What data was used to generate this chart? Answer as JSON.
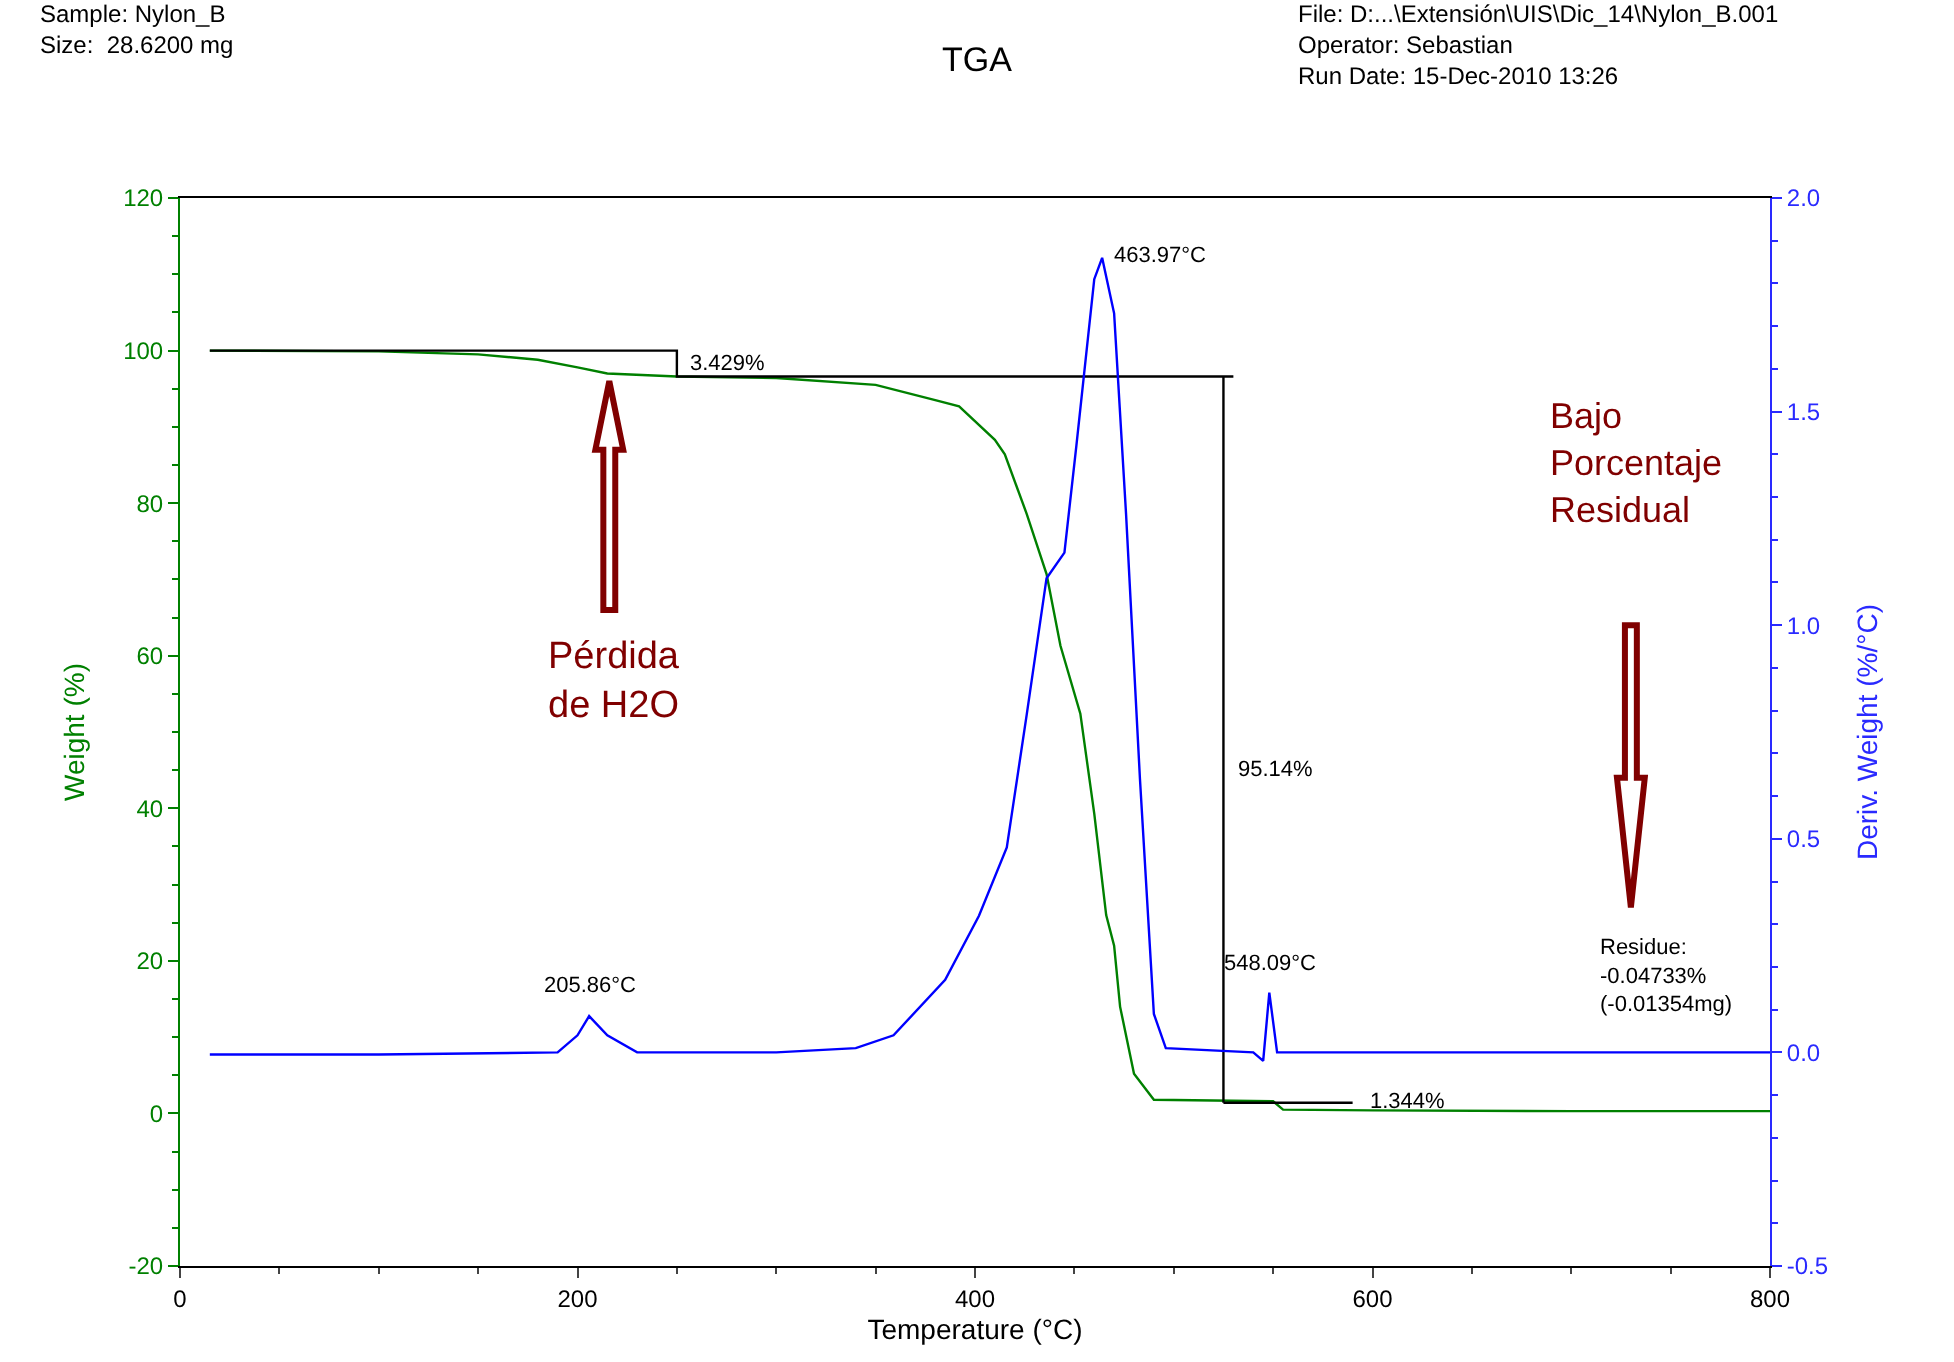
{
  "chart_data": {
    "type": "line",
    "title": "TGA",
    "xlabel": "Temperature (°C)",
    "ylabel": "Weight (%)",
    "y2label": "Deriv. Weight (%/°C)",
    "series": [
      {
        "color": "#008000",
        "x": [
          15,
          100,
          150,
          180,
          200,
          215,
          250,
          300,
          350,
          380,
          392,
          410,
          415,
          426,
          436,
          443,
          453,
          460,
          466,
          470,
          473,
          480,
          490,
          520,
          550,
          555,
          600,
          700,
          800
        ],
        "values": [
          100,
          99.9,
          99.5,
          98.8,
          97.8,
          97.0,
          96.6,
          96.4,
          95.5,
          93.5,
          92.7,
          88.3,
          86.4,
          78.6,
          70.7,
          61.3,
          52.4,
          39.3,
          26,
          22,
          14,
          5.2,
          1.8,
          1.7,
          1.6,
          0.5,
          0.4,
          0.3,
          0.3
        ]
      },
      {
        "color": "#0000ff",
        "axis": "y2",
        "x": [
          15,
          100,
          190,
          200,
          205.86,
          215,
          230,
          300,
          340,
          359,
          385,
          402,
          416,
          426,
          436,
          445,
          451,
          460,
          463.97,
          470,
          476,
          483,
          490,
          496,
          540,
          545,
          548.09,
          552,
          560,
          700,
          800
        ],
        "values": [
          -0.005,
          -0.005,
          0.0,
          0.04,
          0.085,
          0.04,
          0.0,
          0.0,
          0.01,
          0.04,
          0.17,
          0.32,
          0.48,
          0.79,
          1.11,
          1.17,
          1.42,
          1.81,
          1.86,
          1.73,
          1.26,
          0.64,
          0.09,
          0.01,
          0.0,
          -0.02,
          0.14,
          0.0,
          0.0,
          0.0,
          0.0
        ]
      },
      {
        "color": "#000000",
        "x": [
          15,
          250,
          250,
          530,
          null,
          525,
          525,
          null,
          525,
          590
        ],
        "values": [
          100,
          100,
          96.6,
          96.6,
          null,
          96.6,
          1.4,
          null,
          1.4,
          1.4
        ]
      }
    ],
    "xlim": [
      0,
      800
    ],
    "xticks": [
      0,
      200,
      400,
      600,
      800
    ],
    "ylim": [
      -20,
      120
    ],
    "yticks": [
      -20,
      0,
      20,
      40,
      60,
      80,
      100,
      120
    ],
    "y2lim": [
      -0.5,
      2.0
    ],
    "y2ticks": [
      -0.5,
      {
        "value": 0,
        "label": "0.0"
      },
      0.5,
      {
        "value": 1,
        "label": "1.0"
      },
      1.5,
      {
        "value": 2,
        "label": "2.0"
      }
    ],
    "marker": "none",
    "line_style": "solid",
    "annotations": [
      "Sample: Nylon_B\nSize:  28.6200 mg",
      "File: D:...\\Extensión\\UIS\\Dic_14\\Nylon_B.001\nOperator: Sebastian\nRun Date: 15-Dec-2010 13:26",
      {
        "text": "3.429%",
        "x": 255,
        "y": 98.3
      },
      {
        "text": "95.14%",
        "x": 530,
        "y": 45
      },
      {
        "text": "463.97°C",
        "x": 468,
        "y": 112.4
      },
      "205.86°C",
      "548.09°C",
      "1.344%",
      "Residue:\n-0.04733%\n(-0.01354mg)",
      "Pérdida\nde H2O",
      "Bajo\nPorcentaje\nResidual"
    ]
  }
}
